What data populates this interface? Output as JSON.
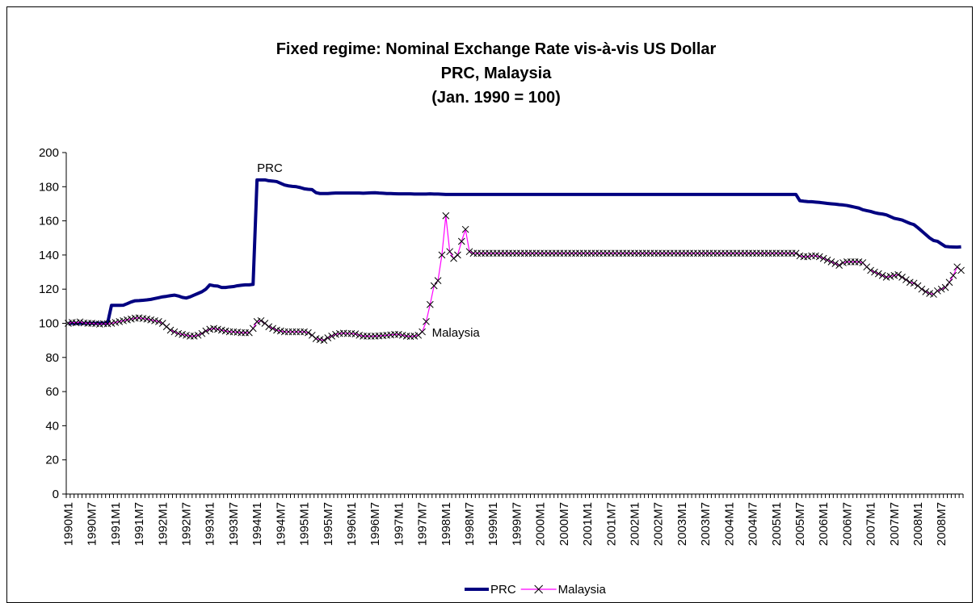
{
  "chart_data": {
    "type": "line",
    "title": [
      "Fixed regime: Nominal Exchange Rate vis-à-vis US Dollar",
      "PRC, Malaysia",
      "(Jan. 1990 = 100)"
    ],
    "categories": [
      "1990M1",
      null,
      null,
      null,
      null,
      null,
      "1990M7",
      null,
      null,
      null,
      null,
      null,
      "1991M1",
      null,
      null,
      null,
      null,
      null,
      "1991M7",
      null,
      null,
      null,
      null,
      null,
      "1992M1",
      null,
      null,
      null,
      null,
      null,
      "1992M7",
      null,
      null,
      null,
      null,
      null,
      "1993M1",
      null,
      null,
      null,
      null,
      null,
      "1993M7",
      null,
      null,
      null,
      null,
      null,
      "1994M1",
      null,
      null,
      null,
      null,
      null,
      "1994M7",
      null,
      null,
      null,
      null,
      null,
      "1995M1",
      null,
      null,
      null,
      null,
      null,
      "1995M7",
      null,
      null,
      null,
      null,
      null,
      "1996M1",
      null,
      null,
      null,
      null,
      null,
      "1996M7",
      null,
      null,
      null,
      null,
      null,
      "1997M1",
      null,
      null,
      null,
      null,
      null,
      "1997M7",
      null,
      null,
      null,
      null,
      null,
      "1998M1",
      null,
      null,
      null,
      null,
      null,
      "1998M7",
      null,
      null,
      null,
      null,
      null,
      "1999M1",
      null,
      null,
      null,
      null,
      null,
      "1999M7",
      null,
      null,
      null,
      null,
      null,
      "2000M1",
      null,
      null,
      null,
      null,
      null,
      "2000M7",
      null,
      null,
      null,
      null,
      null,
      "2001M1",
      null,
      null,
      null,
      null,
      null,
      "2001M7",
      null,
      null,
      null,
      null,
      null,
      "2002M1",
      null,
      null,
      null,
      null,
      null,
      "2002M7",
      null,
      null,
      null,
      null,
      null,
      "2003M1",
      null,
      null,
      null,
      null,
      null,
      "2003M7",
      null,
      null,
      null,
      null,
      null,
      "2004M1",
      null,
      null,
      null,
      null,
      null,
      "2004M7",
      null,
      null,
      null,
      null,
      null,
      "2005M1",
      null,
      null,
      null,
      null,
      null,
      "2005M7",
      null,
      null,
      null,
      null,
      null,
      "2006M1",
      null,
      null,
      null,
      null,
      null,
      "2006M7",
      null,
      null,
      null,
      null,
      null,
      "2007M1",
      null,
      null,
      null,
      null,
      null,
      "2007M7",
      null,
      null,
      null,
      null,
      null,
      "2008M1",
      null,
      null,
      null,
      null,
      null,
      "2008M7",
      null,
      null,
      null,
      null,
      null
    ],
    "series": [
      {
        "name": "PRC",
        "color": "#000080",
        "values": [
          100,
          100,
          100,
          100,
          100,
          100,
          100,
          100,
          100,
          100,
          100,
          110.5,
          110.5,
          110.5,
          110.6,
          111.5,
          112.5,
          113.2,
          113.3,
          113.5,
          113.7,
          114,
          114.5,
          115,
          115.5,
          115.8,
          116.2,
          116.5,
          116,
          115.2,
          114.8,
          115.5,
          116.5,
          117.5,
          118.5,
          120,
          122.5,
          122,
          121.8,
          121,
          121,
          121.3,
          121.5,
          122,
          122.3,
          122.5,
          122.5,
          122.8,
          184,
          184,
          184,
          183.5,
          183.3,
          183,
          182,
          181,
          180.5,
          180.2,
          180,
          179.5,
          178.8,
          178.5,
          178.3,
          176.5,
          176,
          176,
          176,
          176.2,
          176.3,
          176.3,
          176.3,
          176.3,
          176.3,
          176.3,
          176.3,
          176.2,
          176.3,
          176.4,
          176.5,
          176.3,
          176.2,
          176,
          176,
          175.9,
          175.8,
          175.8,
          175.8,
          175.8,
          175.7,
          175.7,
          175.7,
          175.7,
          175.8,
          175.7,
          175.7,
          175.6,
          175.5,
          175.5,
          175.5,
          175.5,
          175.5,
          175.5,
          175.5,
          175.5,
          175.5,
          175.5,
          175.5,
          175.5,
          175.5,
          175.5,
          175.5,
          175.5,
          175.5,
          175.5,
          175.5,
          175.5,
          175.5,
          175.5,
          175.5,
          175.5,
          175.5,
          175.5,
          175.5,
          175.5,
          175.5,
          175.5,
          175.5,
          175.5,
          175.5,
          175.5,
          175.5,
          175.5,
          175.5,
          175.5,
          175.5,
          175.5,
          175.5,
          175.5,
          175.5,
          175.5,
          175.5,
          175.5,
          175.5,
          175.5,
          175.5,
          175.5,
          175.5,
          175.5,
          175.5,
          175.5,
          175.5,
          175.5,
          175.5,
          175.5,
          175.5,
          175.5,
          175.5,
          175.5,
          175.5,
          175.5,
          175.5,
          175.5,
          175.5,
          175.5,
          175.5,
          175.5,
          175.5,
          175.5,
          175.5,
          175.5,
          175.5,
          175.5,
          175.5,
          175.5,
          175.5,
          175.5,
          175.5,
          175.5,
          175.5,
          175.5,
          175.5,
          175.5,
          175.5,
          175.5,
          175.5,
          175.5,
          171.8,
          171.5,
          171.3,
          171.2,
          171,
          170.8,
          170.5,
          170.2,
          170,
          169.8,
          169.5,
          169.3,
          169,
          168.5,
          168,
          167.5,
          166.5,
          166,
          165.5,
          164.8,
          164.3,
          164,
          163.5,
          162.5,
          161.5,
          161,
          160.5,
          159.5,
          158.5,
          157.8,
          156,
          154,
          152,
          150,
          148.5,
          148,
          146.5,
          145,
          144.8,
          144.7,
          144.6,
          144.8
        ]
      },
      {
        "name": "Malaysia",
        "color": "#ff00ff",
        "marker_color": "#000000",
        "values": [
          100,
          100.5,
          100.3,
          100.8,
          100.2,
          100,
          100,
          99.8,
          99.5,
          99.8,
          99.7,
          100,
          100.5,
          101,
          101.5,
          102,
          102.5,
          103,
          103.2,
          102.8,
          102.5,
          102,
          101.5,
          101,
          100,
          98,
          96,
          95,
          94,
          93.5,
          93,
          92.5,
          92.5,
          93,
          94,
          95.5,
          96.5,
          97,
          96.5,
          96,
          95.5,
          95,
          95,
          94.8,
          94.5,
          94.5,
          94.5,
          97,
          101,
          101.5,
          100,
          98,
          97,
          96,
          95.5,
          95,
          95,
          95,
          95,
          95,
          95,
          94.5,
          93,
          91,
          90.5,
          90,
          91.5,
          92.5,
          93.5,
          94,
          94.2,
          94,
          94,
          93.8,
          93,
          92.5,
          92.5,
          92.4,
          92.5,
          92.6,
          92.8,
          93,
          93.2,
          93.5,
          93.5,
          93,
          92.5,
          92.3,
          92.5,
          93,
          95,
          101,
          111,
          122,
          125,
          140,
          163,
          142,
          138,
          140,
          148,
          155,
          142,
          141,
          141,
          141,
          141,
          141,
          141,
          141,
          141,
          141,
          141,
          141,
          141,
          141,
          141,
          141,
          141,
          141,
          141,
          141,
          141,
          141,
          141,
          141,
          141,
          141,
          141,
          141,
          141,
          141,
          141,
          141,
          141,
          141,
          141,
          141,
          141,
          141,
          141,
          141,
          141,
          141,
          141,
          141,
          141,
          141,
          141,
          141,
          141,
          141,
          141,
          141,
          141,
          141,
          141,
          141,
          141,
          141,
          141,
          141,
          141,
          141,
          141,
          141,
          141,
          141,
          141,
          141,
          141,
          141,
          141,
          141,
          141,
          141,
          141,
          141,
          141,
          141,
          141,
          141,
          141,
          141,
          141,
          141,
          139.5,
          139,
          139,
          139.5,
          139.5,
          139,
          138,
          137,
          136,
          135,
          134,
          135.5,
          136,
          136,
          136,
          136,
          135.5,
          133,
          131,
          130,
          129,
          128,
          127,
          127.5,
          128,
          128.5,
          127,
          125.5,
          124,
          123.5,
          122,
          120,
          118.5,
          117.5,
          117,
          119,
          120,
          121,
          124,
          128,
          133,
          131
        ]
      }
    ],
    "annotations": [
      {
        "text": "PRC",
        "series": 0,
        "index": 48
      },
      {
        "text": "Malaysia",
        "series": 1,
        "index": 90
      }
    ],
    "ylim": [
      0,
      200
    ],
    "yticks": [
      0,
      20,
      40,
      60,
      80,
      100,
      120,
      140,
      160,
      180,
      200
    ],
    "grid": false,
    "legend": "bottom"
  }
}
